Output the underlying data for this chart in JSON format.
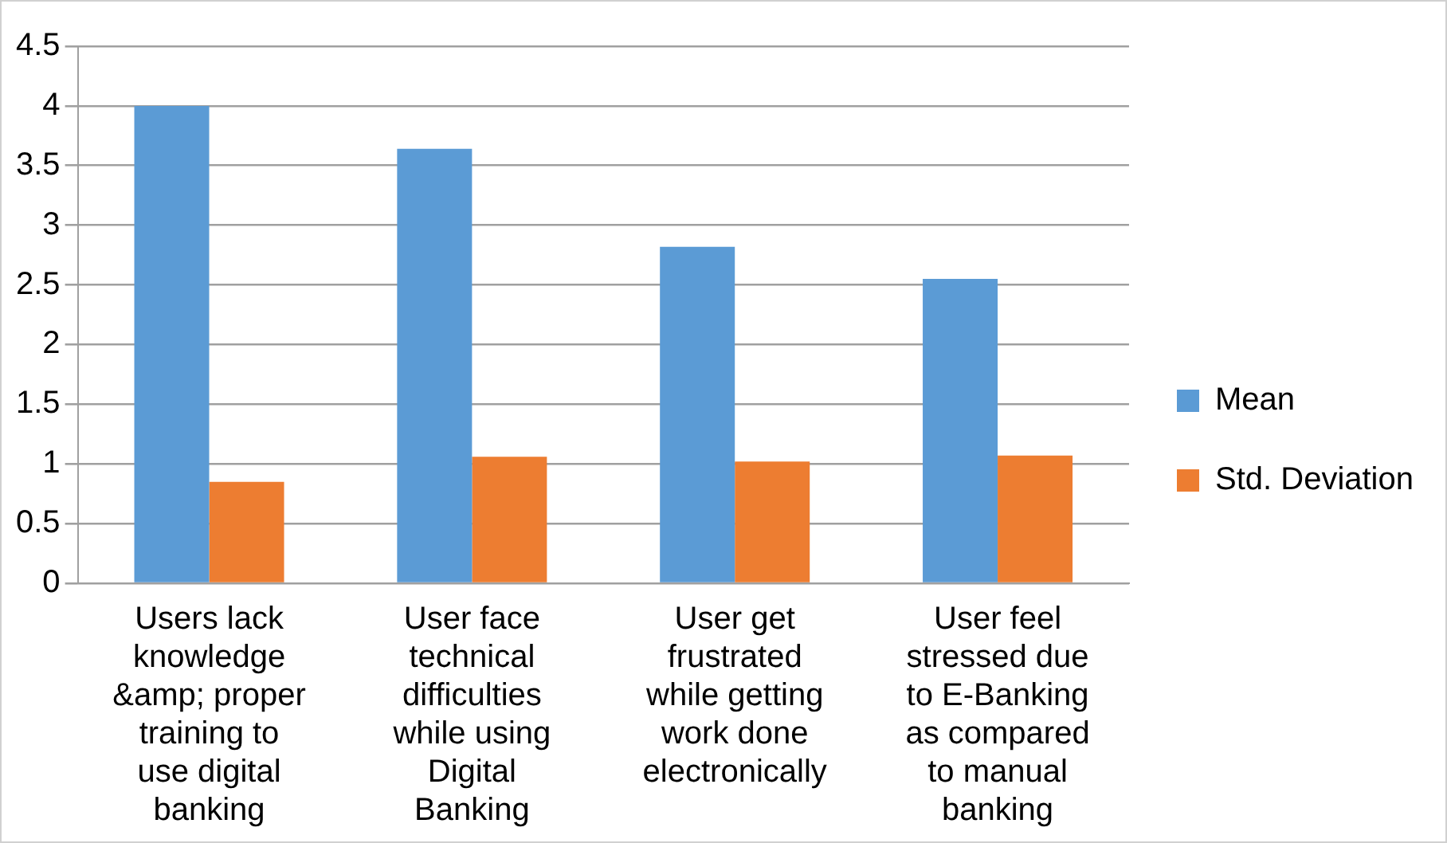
{
  "chart_data": {
    "type": "bar",
    "categories": [
      "Users lack knowledge &amp; proper training to use digital banking",
      "User face technical difficulties while using Digital Banking",
      "User get frustrated while getting work done electronically",
      "User feel stressed due to E-Banking as compared to manual banking"
    ],
    "series": [
      {
        "name": "Mean",
        "color": "#5b9bd5",
        "values": [
          4.0,
          3.64,
          2.82,
          2.55
        ]
      },
      {
        "name": "Std. Deviation",
        "color": "#ed7d31",
        "values": [
          0.85,
          1.06,
          1.02,
          1.07
        ]
      }
    ],
    "ylim": [
      0,
      4.5
    ],
    "yticks": [
      0,
      0.5,
      1,
      1.5,
      2,
      2.5,
      3,
      3.5,
      4,
      4.5
    ],
    "grid": "y",
    "legend": "right"
  }
}
